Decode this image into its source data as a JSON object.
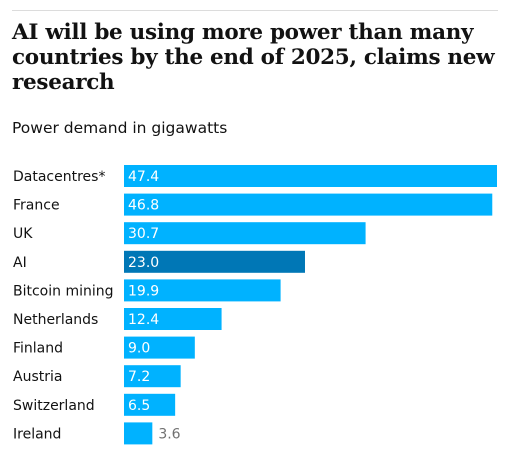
{
  "headline": "AI will be using more power than many countries by the end of 2025, claims new research",
  "subtitle": "Power demand in gigawatts",
  "colors": {
    "bar": "#00b2ff",
    "highlight": "#0077b6",
    "value_inside": "#ffffff",
    "value_outside": "#707070"
  },
  "chart_data": {
    "type": "bar",
    "orientation": "horizontal",
    "title": "AI will be using more power than many countries by the end of 2025, claims new research",
    "subtitle": "Power demand in gigawatts",
    "categories": [
      "Datacentres*",
      "France",
      "UK",
      "AI",
      "Bitcoin mining",
      "Netherlands",
      "Finland",
      "Austria",
      "Switzerland",
      "Ireland"
    ],
    "values": [
      47.4,
      46.8,
      30.7,
      23.0,
      19.9,
      12.4,
      9.0,
      7.2,
      6.5,
      3.6
    ],
    "value_labels": [
      "47.4",
      "46.8",
      "30.7",
      "23.0",
      "19.9",
      "12.4",
      "9.0",
      "7.2",
      "6.5",
      "3.6"
    ],
    "highlighted_category": "AI",
    "xlim": [
      0,
      47.4
    ],
    "grid": false,
    "legend": "none"
  }
}
